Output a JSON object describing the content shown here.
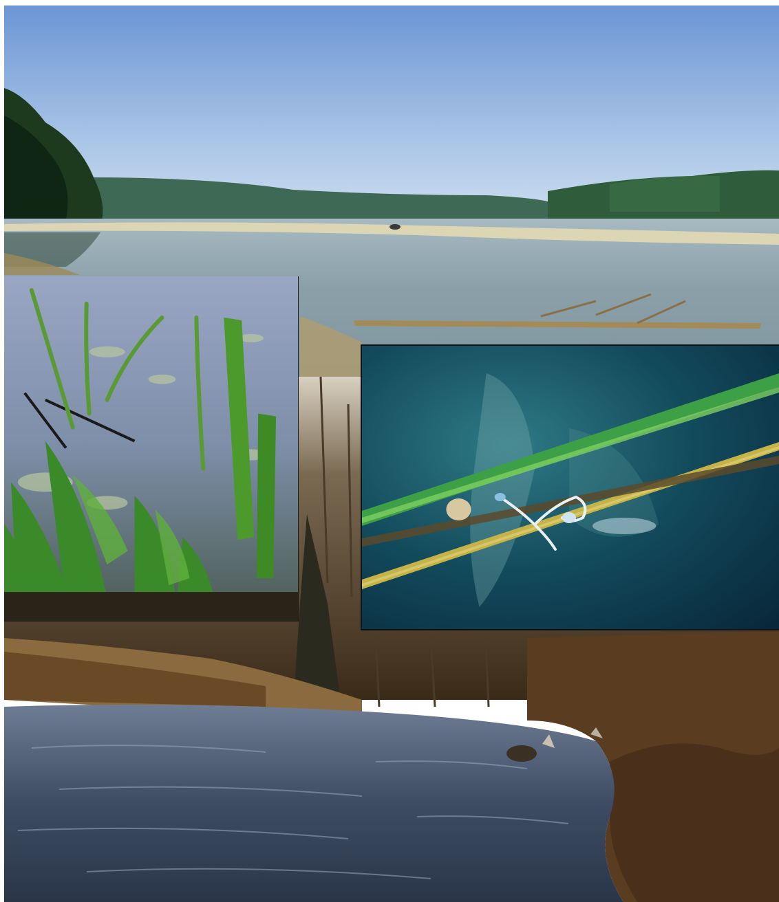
{
  "photos": [
    {
      "id": "lake",
      "subject": "wide-river-sandbank"
    },
    {
      "id": "river",
      "subject": "river-brown-banks"
    },
    {
      "id": "plants",
      "subject": "aquatic-plants"
    },
    {
      "id": "damselfly",
      "subject": "damselflies-on-reed"
    }
  ],
  "colors": {
    "sky_top": "#6f9ad6",
    "sky_bottom": "#c9dcf0",
    "forest": "#2f5a36",
    "sandbank": "#ddd6b4",
    "lake_water": "#8aa3ae",
    "river_water": "#3a4a60",
    "bank_brown": "#6a4a26",
    "plant_green": "#3f8a2a",
    "damselfly_bg": "#0b3b4e",
    "reed_green": "#58c24a"
  }
}
